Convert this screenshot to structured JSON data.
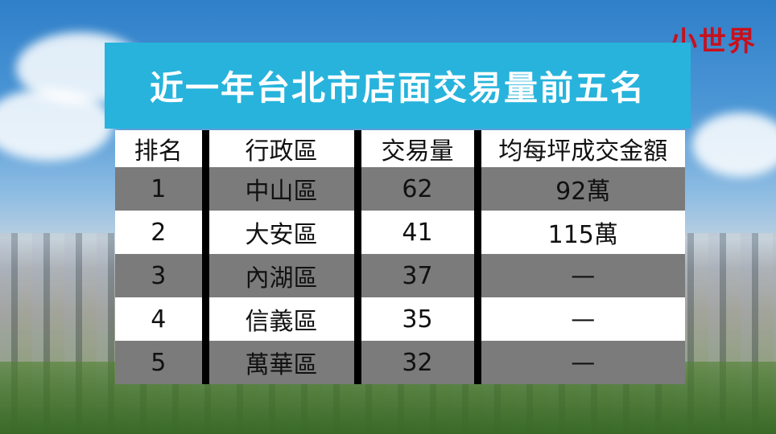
{
  "logo": "小世界",
  "title": "近一年台北市店面交易量前五名",
  "colors": {
    "title_bg": "#27b3dc",
    "row_gray": "#7b7b7b",
    "logo": "#c8101c"
  },
  "chart_data": {
    "type": "table",
    "title": "近一年台北市店面交易量前五名",
    "columns": [
      "排名",
      "行政區",
      "交易量",
      "均每坪成交金額"
    ],
    "rows": [
      [
        "1",
        "中山區",
        "62",
        "92萬"
      ],
      [
        "2",
        "大安區",
        "41",
        "115萬"
      ],
      [
        "3",
        "內湖區",
        "37",
        "—"
      ],
      [
        "4",
        "信義區",
        "35",
        "—"
      ],
      [
        "5",
        "萬華區",
        "32",
        "—"
      ]
    ]
  }
}
